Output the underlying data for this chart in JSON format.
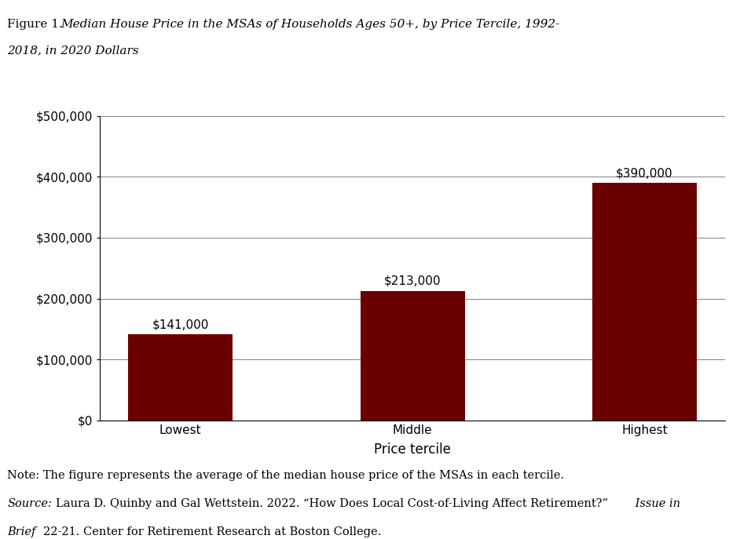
{
  "categories": [
    "Lowest",
    "Middle",
    "Highest"
  ],
  "values": [
    141000,
    213000,
    390000
  ],
  "bar_color": "#6B0000",
  "bar_labels": [
    "$141,000",
    "$213,000",
    "$390,000"
  ],
  "xlabel": "Price tercile",
  "ylim": [
    0,
    500000
  ],
  "yticks": [
    0,
    100000,
    200000,
    300000,
    400000,
    500000
  ],
  "ytick_labels": [
    "$0",
    "$100,000",
    "$200,000",
    "$300,000",
    "$400,000",
    "$500,000"
  ],
  "title_prefix": "Figure 1. ",
  "title_italic": "Median House Price in the MSAs of Households Ages 50+, by Price Tercile, 1992-\n2018, in 2020 Dollars",
  "note_line1": "Note: The figure represents the average of the median house price of the MSAs in each tercile.",
  "source_text1": "Source:",
  "source_text2": " Laura D. Quinby and Gal Wettstein. 2022. “How Does Local Cost-of-Living Affect Retirement?” ",
  "source_italic": "Issue in",
  "source_text3": "\nBrief",
  "source_italic2": "Brief",
  "source_text4": " 22-21. Center for Retirement Research at Boston College.",
  "background_color": "#FFFFFF",
  "bar_label_fontsize": 11,
  "axis_label_fontsize": 12,
  "tick_label_fontsize": 11,
  "title_fontsize": 11,
  "note_fontsize": 10.5
}
